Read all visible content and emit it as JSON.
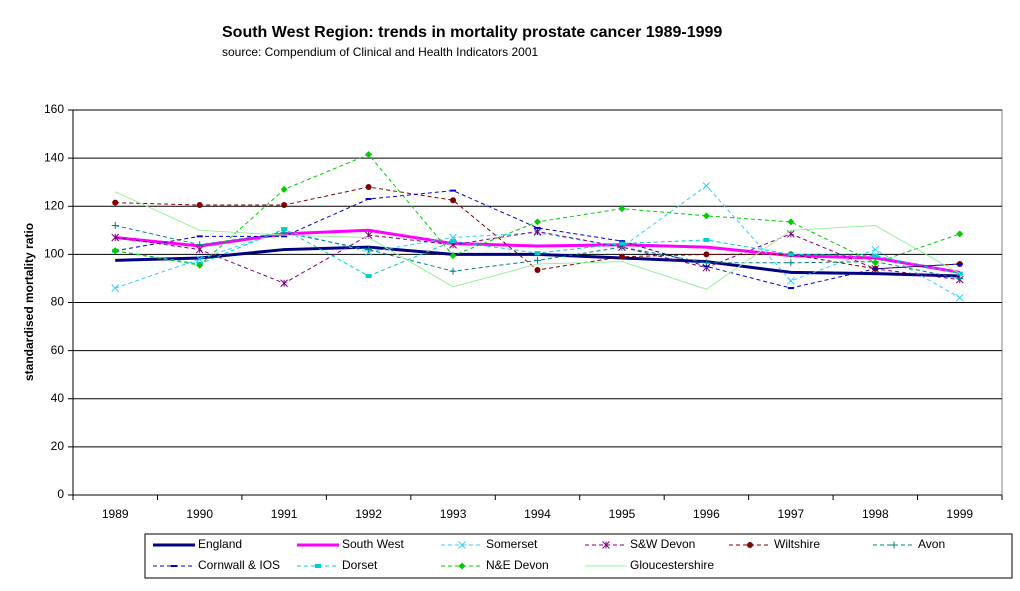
{
  "chart_data": {
    "type": "line",
    "title": "South West Region:  trends in mortality prostate cancer 1989-1999",
    "subtitle": "source: Compendium of Clinical and Health Indicators  2001",
    "y_label": "standardised mortality ratio",
    "categories": [
      "1989",
      "1990",
      "1991",
      "1992",
      "1993",
      "1994",
      "1995",
      "1996",
      "1997",
      "1998",
      "1999"
    ],
    "ylim": [
      0,
      160
    ],
    "yticks": [
      0,
      20,
      40,
      60,
      80,
      100,
      120,
      140,
      160
    ],
    "grid": true,
    "legend": "bottom",
    "series": [
      {
        "name": "England",
        "color": "#000080",
        "width": 3,
        "dashed": false,
        "marker": "none",
        "values": [
          97.5,
          98.5,
          102,
          103,
          100,
          100,
          98.5,
          97,
          92.5,
          92,
          91
        ]
      },
      {
        "name": "South West",
        "color": "#ff00ff",
        "width": 3,
        "dashed": false,
        "marker": "none",
        "values": [
          107,
          103.5,
          108.5,
          110,
          104.5,
          103.5,
          104,
          103,
          99.5,
          98.5,
          92.5
        ]
      },
      {
        "name": "Somerset",
        "color": "#33ccff",
        "width": 1,
        "dashed": true,
        "marker": "x",
        "values": [
          86,
          98,
          110,
          101,
          107,
          109,
          103,
          128.5,
          89,
          102,
          82
        ]
      },
      {
        "name": "S&W Devon",
        "color": "#800080",
        "width": 1,
        "dashed": true,
        "marker": "star",
        "values": [
          107,
          102,
          88,
          108,
          104,
          109.5,
          103,
          94.5,
          108.5,
          94,
          89.5
        ]
      },
      {
        "name": "Wiltshire",
        "color": "#800000",
        "width": 1,
        "dashed": true,
        "marker": "circle",
        "values": [
          121.5,
          120.5,
          120.5,
          128,
          122.5,
          93.5,
          99,
          100,
          100,
          94,
          96
        ]
      },
      {
        "name": "Avon",
        "color": "#008080",
        "width": 1,
        "dashed": true,
        "marker": "plus",
        "values": [
          112,
          104,
          109,
          102,
          93,
          97.5,
          103,
          96.5,
          96.5,
          97,
          90
        ]
      },
      {
        "name": "Cornwall & IOS",
        "color": "#0000cc",
        "width": 1,
        "dashed": true,
        "marker": "dash",
        "values": [
          101.5,
          107.5,
          107.5,
          123,
          126.5,
          111,
          105.5,
          95,
          86,
          94,
          96
        ]
      },
      {
        "name": "Dorset",
        "color": "#00cccc",
        "width": 1,
        "dashed": true,
        "marker": "square",
        "values": [
          101.5,
          96,
          110.5,
          91,
          105.5,
          100.5,
          104.5,
          106,
          100,
          99.5,
          92
        ]
      },
      {
        "name": "N&E Devon",
        "color": "#00cc00",
        "width": 1,
        "dashed": true,
        "marker": "diamond",
        "values": [
          101.5,
          95.5,
          127,
          141.5,
          99.5,
          113.5,
          119,
          116,
          113.5,
          96.5,
          108.5
        ]
      },
      {
        "name": "Gloucestershire",
        "color": "#99ee99",
        "width": 1,
        "dashed": false,
        "marker": "none",
        "values": [
          126,
          110,
          108,
          107,
          86.5,
          96,
          97,
          85.5,
          110,
          112,
          92
        ]
      }
    ]
  }
}
